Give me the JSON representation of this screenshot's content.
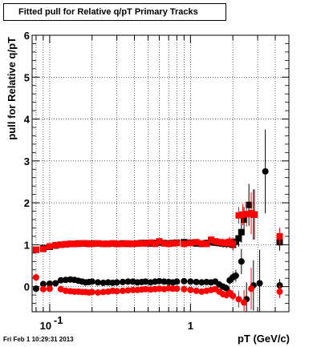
{
  "header": {
    "title": "Fitted pull for Relative q/pT  Primary Tracks"
  },
  "footer": {
    "timestamp": "Fri Feb  1 10:29:31 2013"
  },
  "colors": {
    "series_black": "#000000",
    "series_red": "#ff0000",
    "grid": "#000000",
    "background": "#ffffff"
  },
  "chart_data": {
    "type": "scatter",
    "title": "Fitted pull for Relative q/pT  Primary Tracks",
    "xlabel": "pT (GeV/c)",
    "ylabel": "pull for Relative q/pT",
    "x_scale": "log",
    "xlim": [
      0.075,
      5.0
    ],
    "ylim": [
      -0.6,
      6.0
    ],
    "grid": true,
    "legend": "none",
    "y_ticks": [
      0,
      1,
      2,
      3,
      4,
      5,
      6
    ],
    "x_tick_labels": [
      {
        "value": 0.1,
        "base": "10",
        "exp": "-1"
      },
      {
        "value": 1,
        "base": "1",
        "exp": ""
      }
    ],
    "series": [
      {
        "marker": "square",
        "color": "#000000",
        "points": [
          [
            0.08,
            0.88,
            0.05
          ],
          [
            0.09,
            0.92,
            0.05
          ],
          [
            0.1,
            0.95,
            0.05
          ],
          [
            0.11,
            0.98,
            0.05
          ],
          [
            0.12,
            1.0,
            0.05
          ],
          [
            0.13,
            1.01,
            0.05
          ],
          [
            0.14,
            1.02,
            0.05
          ],
          [
            0.15,
            1.02,
            0.05
          ],
          [
            0.16,
            1.03,
            0.05
          ],
          [
            0.17,
            1.03,
            0.05
          ],
          [
            0.18,
            1.03,
            0.05
          ],
          [
            0.19,
            1.02,
            0.05
          ],
          [
            0.2,
            1.03,
            0.05
          ],
          [
            0.22,
            1.03,
            0.05
          ],
          [
            0.24,
            1.02,
            0.05
          ],
          [
            0.26,
            1.02,
            0.05
          ],
          [
            0.28,
            1.03,
            0.05
          ],
          [
            0.3,
            1.02,
            0.05
          ],
          [
            0.33,
            1.03,
            0.05
          ],
          [
            0.36,
            1.02,
            0.05
          ],
          [
            0.39,
            1.02,
            0.05
          ],
          [
            0.42,
            1.03,
            0.05
          ],
          [
            0.45,
            1.04,
            0.05
          ],
          [
            0.48,
            1.04,
            0.05
          ],
          [
            0.52,
            1.03,
            0.05
          ],
          [
            0.56,
            1.04,
            0.05
          ],
          [
            0.6,
            1.05,
            0.05
          ],
          [
            0.65,
            1.04,
            0.05
          ],
          [
            0.7,
            1.03,
            0.05
          ],
          [
            0.75,
            1.04,
            0.05
          ],
          [
            0.8,
            1.05,
            0.05
          ],
          [
            0.9,
            1.06,
            0.06
          ],
          [
            1.0,
            1.05,
            0.06
          ],
          [
            1.1,
            1.03,
            0.07
          ],
          [
            1.2,
            1.02,
            0.07
          ],
          [
            1.3,
            1.04,
            0.08
          ],
          [
            1.4,
            1.06,
            0.08
          ],
          [
            1.5,
            1.05,
            0.08
          ],
          [
            1.6,
            1.04,
            0.09
          ],
          [
            1.7,
            1.03,
            0.1
          ],
          [
            1.8,
            1.02,
            0.1
          ],
          [
            1.9,
            1.05,
            0.12
          ],
          [
            2.0,
            1.0,
            0.14
          ],
          [
            2.1,
            1.07,
            0.15
          ],
          [
            2.2,
            1.15,
            0.2
          ],
          [
            2.3,
            1.3,
            0.25
          ],
          [
            2.4,
            1.6,
            0.3
          ],
          [
            2.6,
            1.95,
            0.5
          ],
          [
            2.8,
            1.72,
            0.6
          ],
          [
            4.3,
            1.06,
            0.2
          ]
        ]
      },
      {
        "marker": "square",
        "color": "#ff0000",
        "points": [
          [
            0.08,
            0.88,
            0.05
          ],
          [
            0.09,
            0.9,
            0.05
          ],
          [
            0.1,
            0.96,
            0.05
          ],
          [
            0.11,
            0.99,
            0.05
          ],
          [
            0.12,
            1.0,
            0.05
          ],
          [
            0.13,
            1.01,
            0.05
          ],
          [
            0.14,
            1.02,
            0.05
          ],
          [
            0.15,
            1.02,
            0.05
          ],
          [
            0.16,
            1.02,
            0.05
          ],
          [
            0.17,
            1.03,
            0.05
          ],
          [
            0.18,
            1.03,
            0.05
          ],
          [
            0.19,
            1.02,
            0.05
          ],
          [
            0.2,
            1.02,
            0.05
          ],
          [
            0.22,
            1.03,
            0.05
          ],
          [
            0.24,
            1.02,
            0.05
          ],
          [
            0.26,
            1.02,
            0.05
          ],
          [
            0.28,
            1.03,
            0.05
          ],
          [
            0.3,
            1.02,
            0.05
          ],
          [
            0.33,
            1.02,
            0.05
          ],
          [
            0.36,
            1.03,
            0.05
          ],
          [
            0.39,
            1.02,
            0.05
          ],
          [
            0.42,
            1.03,
            0.05
          ],
          [
            0.45,
            1.03,
            0.05
          ],
          [
            0.48,
            1.03,
            0.05
          ],
          [
            0.52,
            1.05,
            0.05
          ],
          [
            0.56,
            1.02,
            0.05
          ],
          [
            0.6,
            1.08,
            0.05
          ],
          [
            0.65,
            1.03,
            0.05
          ],
          [
            0.7,
            1.02,
            0.05
          ],
          [
            0.75,
            1.03,
            0.05
          ],
          [
            0.8,
            1.04,
            0.05
          ],
          [
            0.9,
            1.02,
            0.06
          ],
          [
            1.0,
            1.04,
            0.06
          ],
          [
            1.1,
            1.06,
            0.07
          ],
          [
            1.2,
            1.03,
            0.07
          ],
          [
            1.3,
            1.02,
            0.08
          ],
          [
            1.4,
            1.12,
            0.08
          ],
          [
            1.5,
            1.08,
            0.08
          ],
          [
            1.6,
            1.06,
            0.09
          ],
          [
            1.7,
            1.05,
            0.1
          ],
          [
            1.8,
            1.04,
            0.1
          ],
          [
            1.9,
            1.07,
            0.12
          ],
          [
            2.0,
            1.02,
            0.14
          ],
          [
            2.2,
            1.7,
            0.2
          ],
          [
            2.35,
            1.72,
            0.25
          ],
          [
            2.5,
            1.73,
            0.3
          ],
          [
            2.7,
            1.75,
            0.5
          ],
          [
            2.85,
            1.72,
            0.6
          ],
          [
            4.3,
            1.2,
            0.2
          ]
        ]
      },
      {
        "marker": "circle",
        "color": "#000000",
        "points": [
          [
            0.08,
            -0.05,
            0.04
          ],
          [
            0.09,
            0.06,
            0.04
          ],
          [
            0.1,
            0.07,
            0.04
          ],
          [
            0.11,
            0.08,
            0.04
          ],
          [
            0.12,
            0.15,
            0.04
          ],
          [
            0.13,
            0.16,
            0.04
          ],
          [
            0.14,
            0.17,
            0.04
          ],
          [
            0.15,
            0.16,
            0.04
          ],
          [
            0.16,
            0.14,
            0.04
          ],
          [
            0.17,
            0.12,
            0.04
          ],
          [
            0.18,
            0.1,
            0.04
          ],
          [
            0.19,
            0.11,
            0.04
          ],
          [
            0.2,
            0.12,
            0.04
          ],
          [
            0.22,
            0.1,
            0.04
          ],
          [
            0.24,
            0.09,
            0.04
          ],
          [
            0.26,
            0.1,
            0.04
          ],
          [
            0.28,
            0.09,
            0.04
          ],
          [
            0.3,
            0.1,
            0.04
          ],
          [
            0.33,
            0.11,
            0.04
          ],
          [
            0.36,
            0.12,
            0.04
          ],
          [
            0.39,
            0.12,
            0.04
          ],
          [
            0.42,
            0.1,
            0.04
          ],
          [
            0.45,
            0.11,
            0.04
          ],
          [
            0.48,
            0.12,
            0.04
          ],
          [
            0.52,
            0.1,
            0.04
          ],
          [
            0.56,
            0.12,
            0.04
          ],
          [
            0.6,
            0.13,
            0.04
          ],
          [
            0.65,
            0.12,
            0.04
          ],
          [
            0.7,
            0.11,
            0.04
          ],
          [
            0.75,
            0.1,
            0.04
          ],
          [
            0.8,
            0.12,
            0.04
          ],
          [
            0.9,
            0.13,
            0.04
          ],
          [
            1.0,
            0.12,
            0.05
          ],
          [
            1.1,
            0.11,
            0.05
          ],
          [
            1.2,
            0.1,
            0.05
          ],
          [
            1.3,
            0.11,
            0.06
          ],
          [
            1.4,
            0.1,
            0.06
          ],
          [
            1.5,
            0.12,
            0.06
          ],
          [
            1.6,
            0.05,
            0.07
          ],
          [
            1.7,
            0.0,
            0.08
          ],
          [
            1.8,
            -0.04,
            0.09
          ],
          [
            1.9,
            0.15,
            0.1
          ],
          [
            2.0,
            0.22,
            0.12
          ],
          [
            2.1,
            0.26,
            0.14
          ],
          [
            2.3,
            0.6,
            0.3
          ],
          [
            2.5,
            -0.3,
            0.4
          ],
          [
            2.8,
            0.03,
            0.6
          ],
          [
            3.1,
            0.08,
            0.8
          ],
          [
            3.4,
            2.75,
            1.0
          ],
          [
            4.3,
            0.03,
            0.15
          ]
        ]
      },
      {
        "marker": "circle",
        "color": "#ff0000",
        "points": [
          [
            0.08,
            0.22,
            0.04
          ],
          [
            0.09,
            -0.06,
            0.04
          ],
          [
            0.1,
            -0.05,
            0.04
          ],
          [
            0.12,
            -0.06,
            0.04
          ],
          [
            0.13,
            -0.1,
            0.04
          ],
          [
            0.14,
            -0.11,
            0.04
          ],
          [
            0.15,
            -0.12,
            0.04
          ],
          [
            0.16,
            -0.12,
            0.04
          ],
          [
            0.17,
            -0.13,
            0.04
          ],
          [
            0.18,
            -0.13,
            0.04
          ],
          [
            0.19,
            -0.14,
            0.04
          ],
          [
            0.2,
            -0.13,
            0.04
          ],
          [
            0.22,
            -0.14,
            0.04
          ],
          [
            0.24,
            -0.13,
            0.04
          ],
          [
            0.26,
            -0.12,
            0.04
          ],
          [
            0.28,
            -0.1,
            0.04
          ],
          [
            0.3,
            -0.11,
            0.04
          ],
          [
            0.33,
            -0.1,
            0.04
          ],
          [
            0.36,
            -0.09,
            0.04
          ],
          [
            0.39,
            -0.08,
            0.04
          ],
          [
            0.42,
            -0.08,
            0.04
          ],
          [
            0.45,
            -0.07,
            0.04
          ],
          [
            0.48,
            -0.06,
            0.04
          ],
          [
            0.52,
            -0.07,
            0.04
          ],
          [
            0.56,
            -0.06,
            0.04
          ],
          [
            0.6,
            -0.05,
            0.04
          ],
          [
            0.65,
            -0.06,
            0.04
          ],
          [
            0.7,
            -0.04,
            0.04
          ],
          [
            0.75,
            -0.05,
            0.04
          ],
          [
            0.8,
            -0.05,
            0.04
          ],
          [
            0.9,
            -0.06,
            0.04
          ],
          [
            1.0,
            -0.08,
            0.05
          ],
          [
            1.1,
            -0.1,
            0.05
          ],
          [
            1.2,
            -0.12,
            0.05
          ],
          [
            1.3,
            -0.1,
            0.06
          ],
          [
            1.4,
            -0.08,
            0.06
          ],
          [
            1.5,
            -0.06,
            0.06
          ],
          [
            1.6,
            -0.12,
            0.07
          ],
          [
            1.7,
            -0.18,
            0.08
          ],
          [
            1.8,
            -0.2,
            0.09
          ],
          [
            1.9,
            -0.15,
            0.1
          ],
          [
            2.0,
            -0.22,
            0.12
          ],
          [
            2.2,
            -0.3,
            0.2
          ],
          [
            2.4,
            -0.38,
            0.3
          ],
          [
            2.7,
            -0.05,
            0.5
          ],
          [
            4.3,
            -0.12,
            0.15
          ]
        ]
      }
    ]
  }
}
